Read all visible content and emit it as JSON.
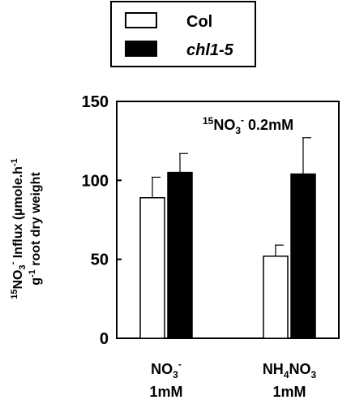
{
  "chart_data": {
    "type": "bar",
    "annotation": {
      "prefix_sup": "15",
      "main": "NO",
      "sub": "3",
      "sup": "-",
      "suffix": " 0.2mM"
    },
    "ylabel": {
      "line1": {
        "prefix_sup": "15",
        "main": "NO",
        "sub": "3",
        "sup": "-",
        "suffix": " Influx (µmole.h",
        "end_sup": "-1"
      },
      "line2": {
        "main": "g",
        "sup": "-1",
        "suffix": " root dry weight"
      }
    },
    "ylim": [
      0,
      150
    ],
    "yticks": [
      0,
      50,
      100,
      150
    ],
    "categories": [
      {
        "id": "nitrate",
        "line1_main": "NO",
        "line1_sub": "3",
        "line1_sup": "-",
        "line2": "1mM"
      },
      {
        "id": "ammonium-nitrate",
        "line1_a": "NH",
        "line1_sub_a": "4",
        "line1_b": "NO",
        "line1_sub_b": "3",
        "line2": "1mM"
      }
    ],
    "series": [
      {
        "name": "Col",
        "fill": "#ffffff",
        "values": [
          89,
          52
        ],
        "errors": [
          13,
          7
        ]
      },
      {
        "name": "chl1-5",
        "fill": "#000000",
        "values": [
          105,
          104
        ],
        "errors": [
          12,
          23
        ]
      }
    ],
    "legend": {
      "placement": "top-center"
    },
    "grid": false
  }
}
